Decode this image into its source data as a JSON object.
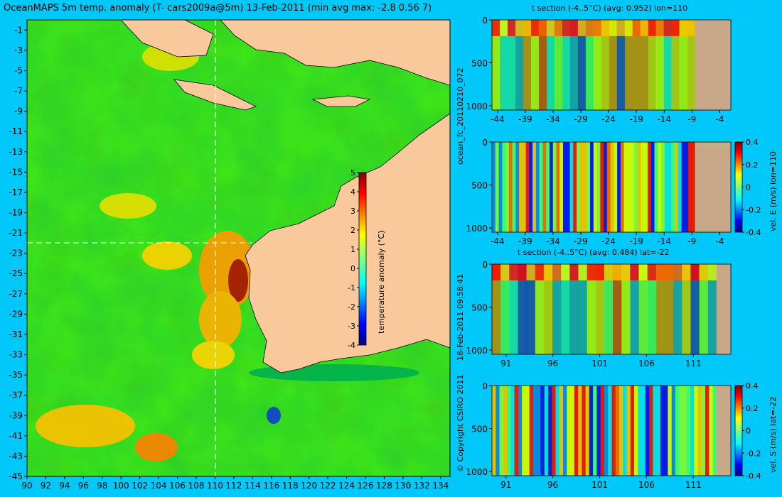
{
  "chart_data": [
    {
      "type": "heatmap",
      "title": "OceanMAPS 5m temp. anomaly (T- cars2009a@5m) 13-Feb-2011 (min avg max: -2.8 0.56 7)",
      "x_ticks": [
        "90",
        "92",
        "94",
        "96",
        "98",
        "100",
        "102",
        "104",
        "106",
        "108",
        "110",
        "112",
        "114",
        "116",
        "118",
        "120",
        "122",
        "124",
        "126",
        "128",
        "130",
        "132",
        "134"
      ],
      "y_ticks": [
        "-1",
        "-3",
        "-5",
        "-7",
        "-9",
        "-11",
        "-13",
        "-15",
        "-17",
        "-19",
        "-21",
        "-23",
        "-25",
        "-27",
        "-29",
        "-31",
        "-33",
        "-35",
        "-37",
        "-39",
        "-41",
        "-43",
        "-45"
      ],
      "colorbar": {
        "label": "temperature anomaly (°C)",
        "ticks": [
          "5",
          "4",
          "3",
          "2",
          "1",
          "0",
          "-1",
          "-2",
          "-3",
          "-4"
        ],
        "range": [
          -4,
          5
        ]
      },
      "section_lines": {
        "lon": 110,
        "lat": -22
      }
    },
    {
      "type": "heatmap",
      "title": "t section (-4..5°C) (avg: 0.952) lon=110",
      "x_ticks": [
        "-44",
        "-39",
        "-34",
        "-29",
        "-24",
        "-19",
        "-14",
        "-9",
        "-4"
      ],
      "y_ticks": [
        "0",
        "500",
        "1000"
      ]
    },
    {
      "type": "heatmap",
      "title": "",
      "x_ticks": [
        "-44",
        "-39",
        "-34",
        "-29",
        "-24",
        "-19",
        "-14",
        "-9",
        "-4"
      ],
      "y_ticks": [
        "0",
        "500",
        "1000"
      ],
      "colorbar": {
        "label": "vel. E (m/s) lon=110",
        "ticks": [
          "0.4",
          "0.2",
          "0",
          "-0.2",
          "-0.4"
        ],
        "range": [
          -0.4,
          0.4
        ]
      }
    },
    {
      "type": "heatmap",
      "title": "t section (-4..5°C) (avg: 0.484) lat=-22",
      "x_ticks": [
        "91",
        "96",
        "101",
        "106",
        "111"
      ],
      "y_ticks": [
        "0",
        "500",
        "1000"
      ]
    },
    {
      "type": "heatmap",
      "title": "",
      "x_ticks": [
        "91",
        "96",
        "101",
        "106",
        "111"
      ],
      "y_ticks": [
        "0",
        "500",
        "1000"
      ],
      "colorbar": {
        "label": "vel. S (m/s) lat=-22",
        "ticks": [
          "0.4",
          "0.2",
          "0",
          "-0.2",
          "-0.4"
        ],
        "range": [
          -0.4,
          0.4
        ]
      }
    }
  ],
  "side_labels": {
    "run_id": "ocean_fc_20110210_072",
    "timestamp": "18-Feb-2011 09:58:41",
    "copyright": "© Copyright CSIRO 2011"
  },
  "colors": {
    "background": "#00c8f8",
    "land": "#f9c89b",
    "section_land": "#c8a888"
  }
}
